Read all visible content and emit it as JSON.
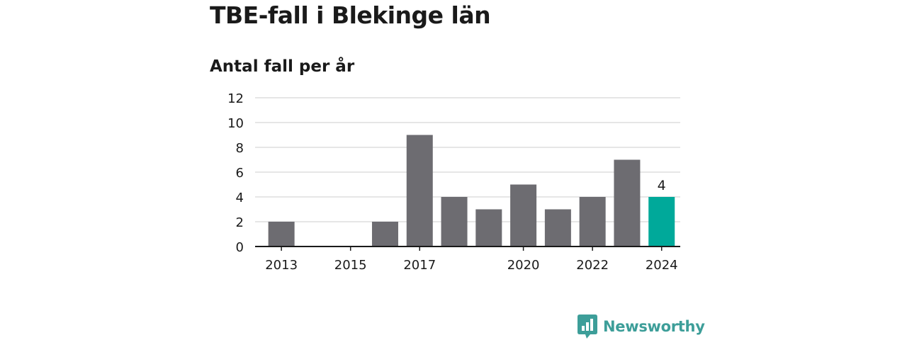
{
  "title": "TBE-fall i Blekinge län",
  "subtitle": "Antal fall per år",
  "brand": {
    "name": "Newsworthy",
    "icon": "bar-chart-speech-bubble-icon",
    "color": "#3d9e99"
  },
  "colors": {
    "bar": "#6d6c71",
    "highlight": "#00a99a",
    "grid": "#dddddd",
    "axis": "#1a1a1a",
    "text": "#1a1a1a"
  },
  "chart_data": {
    "type": "bar",
    "categories": [
      "2013",
      "2014",
      "2015",
      "2016",
      "2017",
      "2018",
      "2019",
      "2020",
      "2021",
      "2022",
      "2023",
      "2024"
    ],
    "values": [
      2,
      0,
      0,
      2,
      9,
      4,
      3,
      5,
      3,
      4,
      7,
      4
    ],
    "x_tick_labels": [
      "2013",
      "2015",
      "2017",
      "2020",
      "2022",
      "2024"
    ],
    "y_ticks": [
      0,
      2,
      4,
      6,
      8,
      10,
      12
    ],
    "ylim": [
      0,
      12
    ],
    "highlight_category": "2024",
    "highlight_label": "4",
    "grid": true,
    "title": "TBE-fall i Blekinge län",
    "ylabel": "Antal fall per år",
    "xlabel": ""
  }
}
